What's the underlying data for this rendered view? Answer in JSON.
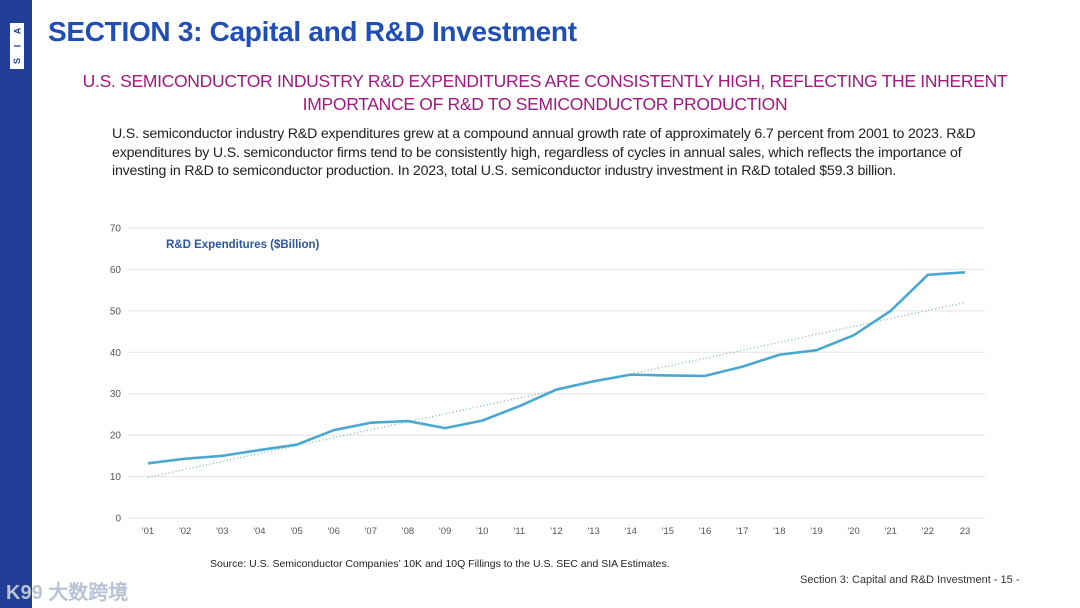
{
  "sidebar": {
    "logo_letters": [
      "S",
      "I",
      "A"
    ]
  },
  "header": {
    "title": "SECTION 3: Capital and R&D Investment"
  },
  "headline": {
    "line1": "U.S. SEMICONDUCTOR INDUSTRY R&D EXPENDITURES ARE CONSISTENTLY HIGH, REFLECTING THE INHERENT",
    "line2": "IMPORTANCE OF R&D TO SEMICONDUCTOR PRODUCTION"
  },
  "body_text": "U.S. semiconductor industry R&D expenditures grew at a compound annual growth rate of approximately 6.7 percent from 2001 to 2023. R&D expenditures by U.S. semiconductor firms tend to be consistently high, regardless of cycles in annual sales, which reflects the importance of investing in R&D to semiconductor production. In 2023, total U.S. semiconductor industry investment in R&D totaled $59.3 billion.",
  "chart_data": {
    "type": "line",
    "title": "R&D Expenditures ($Billion)",
    "xlabel": "",
    "ylabel": "",
    "categories": [
      "'01",
      "'02",
      "'03",
      "'04",
      "'05",
      "'06",
      "'07",
      "'08",
      "'09",
      "'10",
      "'11",
      "'12",
      "'13",
      "'14",
      "'15",
      "'16",
      "'17",
      "'18",
      "'19",
      "'20",
      "'21",
      "'22",
      "23"
    ],
    "series": [
      {
        "name": "R&D Expenditures ($Billion)",
        "color": "#4aa8d0",
        "values": [
          13.2,
          14.3,
          15.0,
          16.4,
          17.7,
          21.2,
          23.0,
          23.4,
          21.7,
          23.5,
          27.0,
          31.0,
          33.0,
          34.6,
          34.4,
          34.3,
          36.5,
          39.4,
          40.5,
          44.1,
          50.0,
          58.7,
          59.3
        ]
      },
      {
        "name": "Trend",
        "style": "dotted",
        "color": "#7fb6a8",
        "values_endpoints": [
          9.8,
          52.0
        ]
      }
    ],
    "ylim": [
      0,
      70
    ],
    "yticks": [
      0,
      10,
      20,
      30,
      40,
      50,
      60,
      70
    ],
    "grid": true
  },
  "source": "Source: U.S. Semiconductor Companies’ 10K and 10Q Fillings to the U.S. SEC and SIA Estimates.",
  "footer": "Section 3: Capital and R&D Investment  - 15 -",
  "watermark": "K99 大数跨境"
}
